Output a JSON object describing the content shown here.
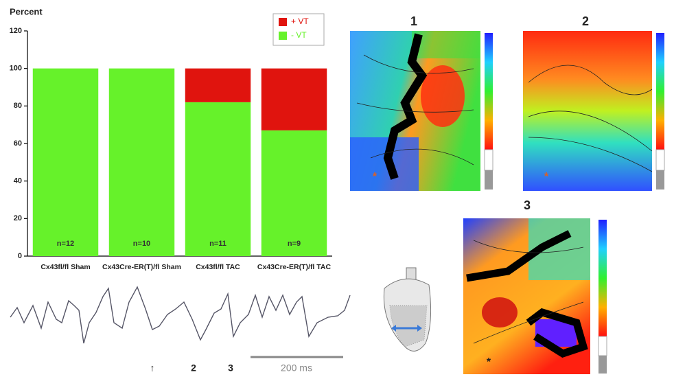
{
  "chart_data": {
    "type": "stacked_bar",
    "y_label": "Percent",
    "categories": [
      "Cx43fl/fl Sham",
      "Cx43Cre-ER(T)/fl Sham",
      "Cx43fl/fl TAC",
      "Cx43Cre-ER(T)/fl TAC"
    ],
    "series": [
      {
        "name": "- VT",
        "color": "#66f22a",
        "values": [
          100,
          100,
          82,
          67
        ]
      },
      {
        "name": "+ VT",
        "color": "#e0140e",
        "values": [
          0,
          0,
          18,
          33
        ]
      }
    ],
    "annotations": [
      "n=12",
      "n=10",
      "n=11",
      "n=9"
    ],
    "ylim": [
      0,
      120
    ],
    "yticks": [
      0,
      20,
      40,
      60,
      80,
      100,
      120
    ],
    "grid": false
  },
  "figure": {
    "map_titles": [
      "1",
      "2",
      "3"
    ],
    "trace_labels": [
      "↑",
      "2",
      "3"
    ],
    "scale_bar_label": "200 ms",
    "pacing_marks": [
      "*",
      "*",
      "*"
    ]
  }
}
